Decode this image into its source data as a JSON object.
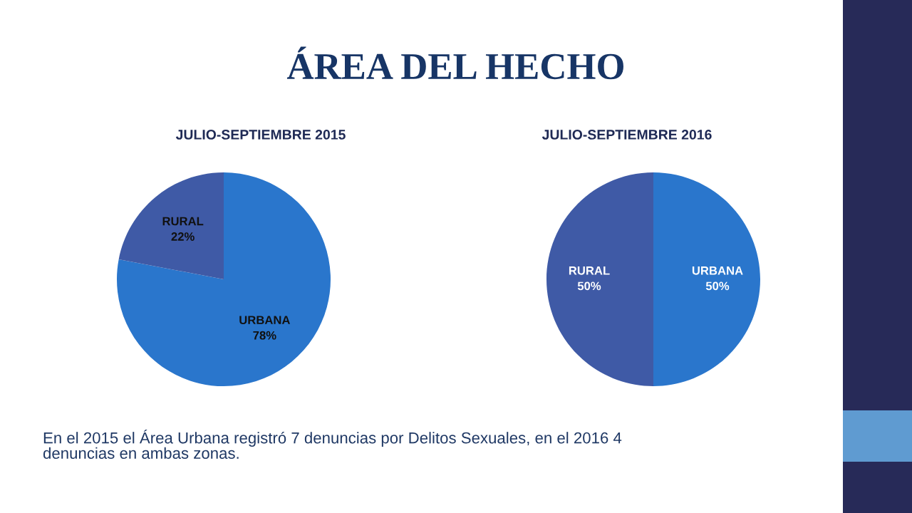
{
  "chart_data": [
    {
      "type": "other",
      "title": "ÁREA DEL HECHO",
      "annotations": [
        "En el 2015 el Área Urbana registró 7 denuncias por Delitos Sexuales, en el 2016 4 denuncias en ambas zonas."
      ]
    },
    {
      "type": "pie",
      "title": "JULIO-SEPTIEMBRE 2015",
      "categories": [
        "URBANA",
        "RURAL"
      ],
      "values": [
        78,
        22
      ],
      "colors": [
        "#2a76cc",
        "#3f5aa6"
      ],
      "value_labels": [
        "78%",
        "22%"
      ]
    },
    {
      "type": "pie",
      "title": "JULIO-SEPTIEMBRE 2016",
      "categories": [
        "URBANA",
        "RURAL"
      ],
      "values": [
        50,
        50
      ],
      "colors": [
        "#2a76cc",
        "#3f5aa6"
      ],
      "value_labels": [
        "50%",
        "50%"
      ]
    }
  ]
}
